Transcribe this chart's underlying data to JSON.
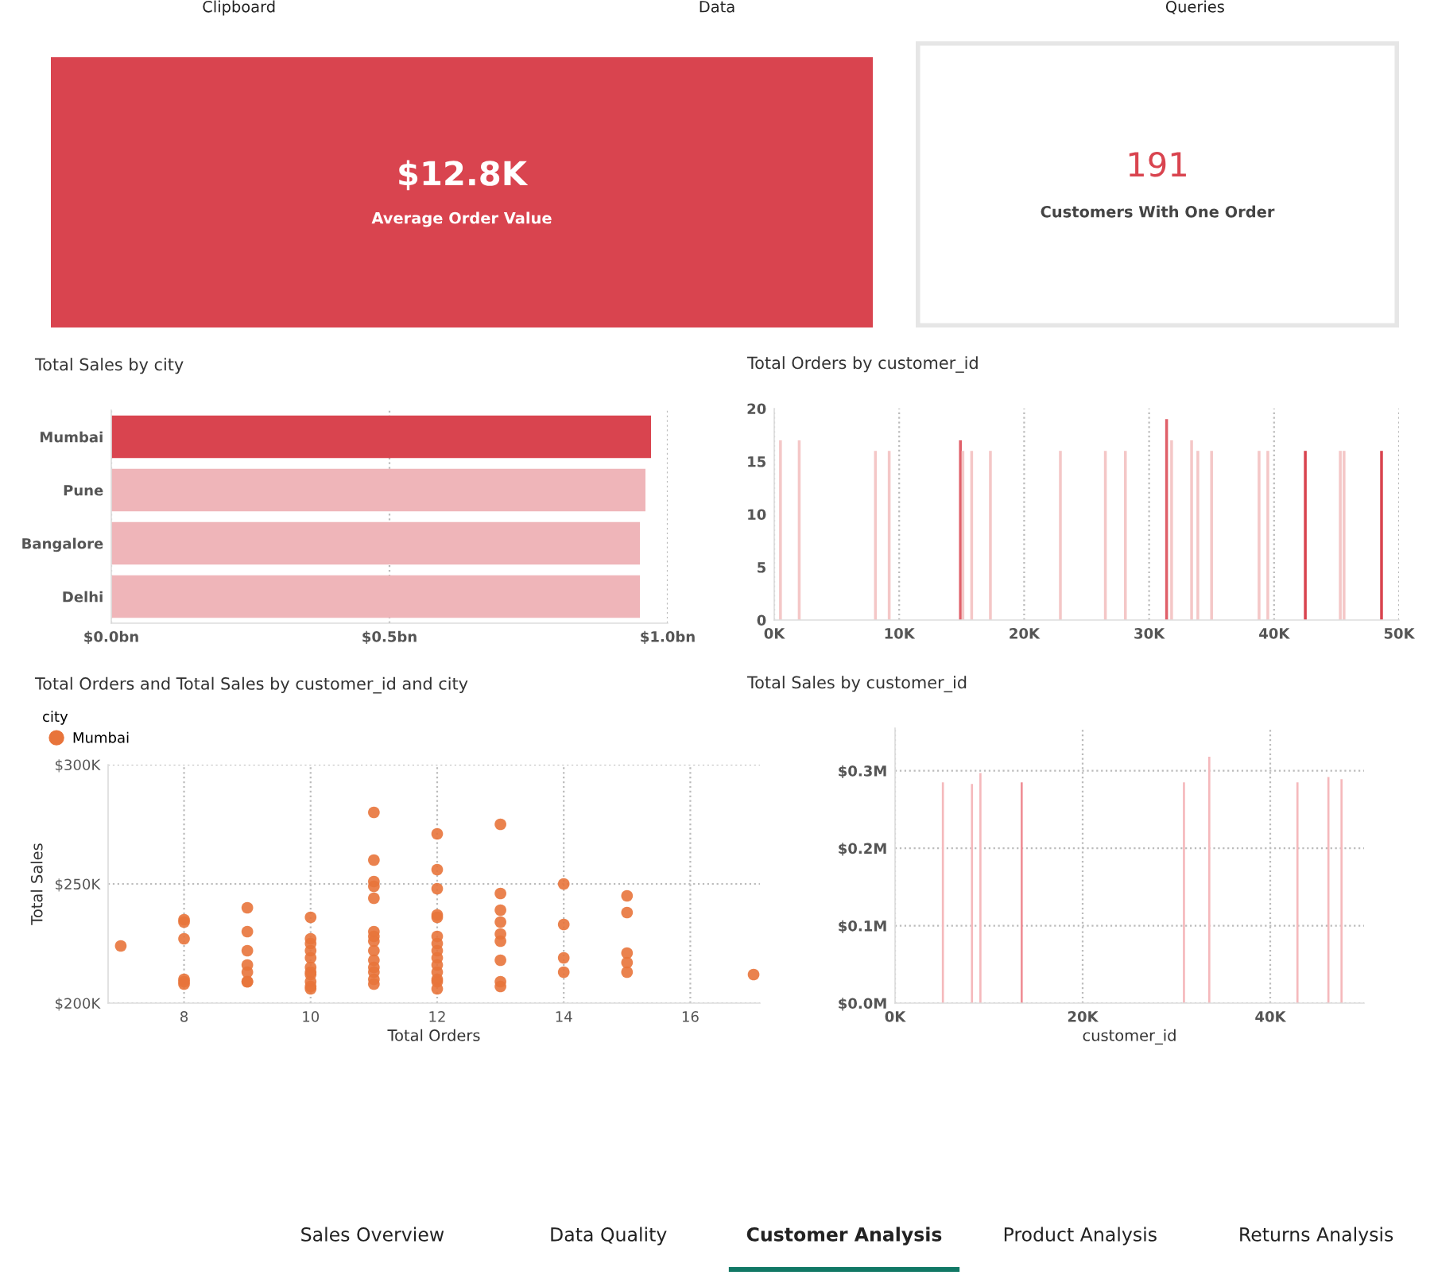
{
  "chart_data": [
    {
      "type": "other",
      "annotations": [
        "Clipboard",
        "Data",
        "Queries"
      ]
    },
    {
      "type": "other",
      "title": "$12.8K",
      "subtitle": "Average Order Value",
      "colors": [
        "#d9444f",
        "#ffffff"
      ]
    },
    {
      "type": "other",
      "title": "191",
      "subtitle": "Customers With One Order",
      "colors": [
        "#ffffff",
        "#d9444f"
      ]
    },
    {
      "type": "bar",
      "orientation": "horizontal",
      "title": "Total Sales by city",
      "categories": [
        "Mumbai",
        "Pune",
        "Bangalore",
        "Delhi"
      ],
      "values": [
        0.97,
        0.96,
        0.95,
        0.95
      ],
      "colors": [
        "#d9444f",
        "#efb5b9",
        "#efb5b9",
        "#efb5b9"
      ],
      "xlim": [
        0,
        1.0
      ],
      "xticks": [
        {
          "value": 0,
          "label": "$0.0bn"
        },
        {
          "value": 0.5,
          "label": "$0.5bn"
        },
        {
          "value": 1.0,
          "label": "$1.0bn"
        }
      ],
      "grid": "x"
    },
    {
      "type": "bar",
      "title": "Total Orders by customer_id",
      "x": [
        500,
        2000,
        8100,
        9200,
        14900,
        15100,
        15800,
        17300,
        22900,
        26500,
        28100,
        31400,
        31800,
        33400,
        33900,
        35000,
        38800,
        39500,
        42500,
        45300,
        45600,
        48600
      ],
      "values": [
        17,
        17,
        16,
        16,
        17,
        16,
        16,
        16,
        16,
        16,
        16,
        19,
        17,
        17,
        16,
        16,
        16,
        16,
        16,
        16,
        16,
        16
      ],
      "colors": [
        "#f4c7c7",
        "#f4c7c7",
        "#f4c7c7",
        "#f4c7c7",
        "#e0606a",
        "#f4c7c7",
        "#f4c7c7",
        "#f4c7c7",
        "#f4c7c7",
        "#f4c7c7",
        "#f4c7c7",
        "#e0606a",
        "#f4c7c7",
        "#f4c7c7",
        "#f4c7c7",
        "#f4c7c7",
        "#f4c7c7",
        "#f4c7c7",
        "#d9444f",
        "#f4c7c7",
        "#f4c7c7",
        "#d9444f"
      ],
      "xlim": [
        0,
        50000
      ],
      "xticks": [
        {
          "value": 0,
          "label": "0K"
        },
        {
          "value": 10000,
          "label": "10K"
        },
        {
          "value": 20000,
          "label": "20K"
        },
        {
          "value": 30000,
          "label": "30K"
        },
        {
          "value": 40000,
          "label": "40K"
        },
        {
          "value": 50000,
          "label": "50K"
        }
      ],
      "ylim": [
        0,
        20
      ],
      "yticks": [
        0,
        5,
        10,
        15,
        20
      ],
      "grid": "x"
    },
    {
      "type": "scatter",
      "title": "Total Orders and Total Sales by customer_id and city",
      "xlabel": "Total Orders",
      "ylabel": "Total Sales",
      "legend_title": "city",
      "legend": "top left",
      "marker": "circle",
      "grid": true,
      "xlim": [
        6.8,
        17.1
      ],
      "xticks": [
        8,
        10,
        12,
        14,
        16
      ],
      "ylim": [
        200,
        300
      ],
      "yticks": [
        {
          "value": 200,
          "label": "$200K"
        },
        {
          "value": 250,
          "label": "$250K"
        },
        {
          "value": 300,
          "label": "$300K"
        }
      ],
      "series": [
        {
          "name": "Mumbai",
          "color": "#e8743b",
          "x": [
            7,
            8,
            8,
            8,
            8,
            8,
            8,
            9,
            9,
            9,
            9,
            9,
            9,
            9,
            10,
            10,
            10,
            10,
            10,
            10,
            10,
            10,
            10,
            10,
            10,
            11,
            11,
            11,
            11,
            11,
            11,
            11,
            11,
            11,
            11,
            11,
            11,
            11,
            11,
            12,
            12,
            12,
            12,
            12,
            12,
            12,
            12,
            12,
            12,
            12,
            12,
            12,
            12,
            13,
            13,
            13,
            13,
            13,
            13,
            13,
            13,
            13,
            14,
            14,
            14,
            14,
            15,
            15,
            15,
            15,
            15,
            17
          ],
          "values": [
            224,
            235,
            234,
            227,
            210,
            209,
            208,
            240,
            230,
            222,
            216,
            213,
            209,
            209,
            236,
            227,
            225,
            222,
            219,
            215,
            213,
            212,
            209,
            207,
            206,
            280,
            260,
            251,
            249,
            244,
            230,
            228,
            226,
            222,
            218,
            215,
            213,
            210,
            208,
            271,
            256,
            248,
            237,
            236,
            228,
            225,
            222,
            219,
            216,
            213,
            210,
            209,
            206,
            275,
            246,
            239,
            234,
            229,
            226,
            218,
            209,
            207,
            250,
            233,
            219,
            213,
            245,
            238,
            221,
            217,
            213,
            212
          ]
        }
      ]
    },
    {
      "type": "bar",
      "title": "Total Sales by customer_id",
      "xlabel": "customer_id",
      "x": [
        5100,
        8200,
        9100,
        13500,
        30800,
        33500,
        42900,
        46200,
        47600
      ],
      "values": [
        0.285,
        0.283,
        0.297,
        0.285,
        0.285,
        0.318,
        0.285,
        0.292,
        0.289
      ],
      "colors": [
        "#f5b9bc",
        "#f5b9bc",
        "#f5b9bc",
        "#ef8f96",
        "#f5b9bc",
        "#f5b9bc",
        "#f5b9bc",
        "#f5b9bc",
        "#f5b9bc"
      ],
      "xlim": [
        0,
        50000
      ],
      "xticks": [
        {
          "value": 0,
          "label": "0K"
        },
        {
          "value": 20000,
          "label": "20K"
        },
        {
          "value": 40000,
          "label": "40K"
        }
      ],
      "ylim": [
        0,
        0.355
      ],
      "yticks": [
        {
          "value": 0,
          "label": "$0.0M"
        },
        {
          "value": 0.1,
          "label": "$0.1M"
        },
        {
          "value": 0.2,
          "label": "$0.2M"
        },
        {
          "value": 0.3,
          "label": "$0.3M"
        }
      ],
      "grid": true
    },
    {
      "type": "other",
      "annotations": [
        "Sales Overview",
        "Data Quality",
        "Customer Analysis",
        "Product Analysis",
        "Returns Analysis"
      ]
    }
  ]
}
